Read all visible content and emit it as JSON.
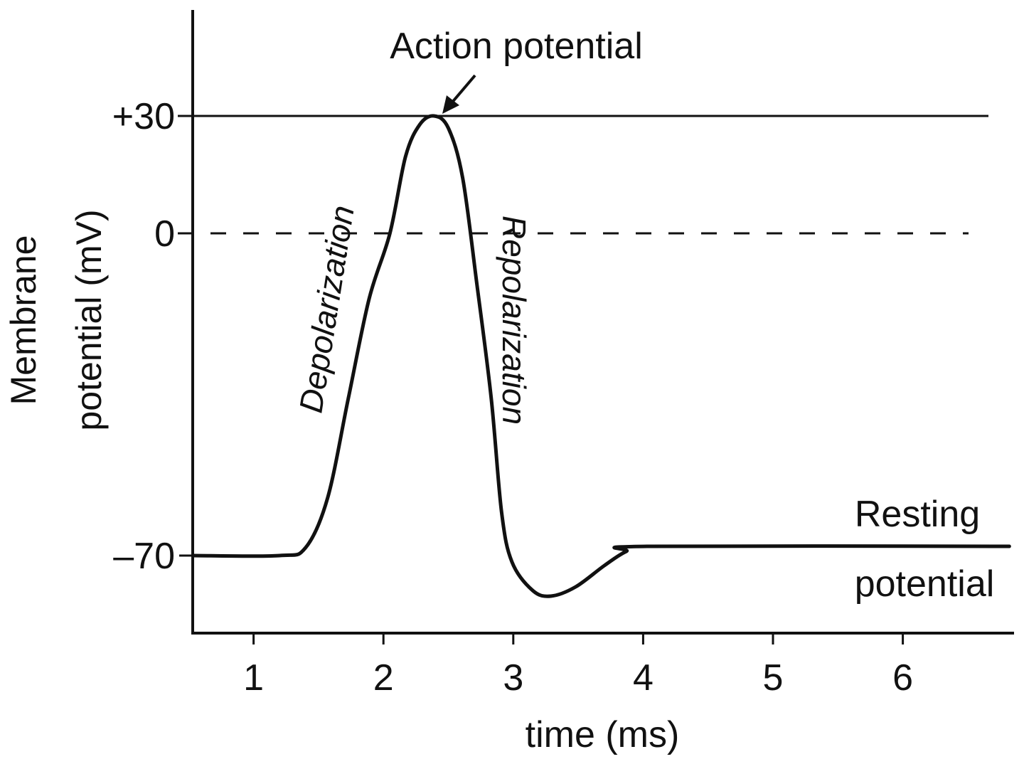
{
  "chart_data": {
    "type": "line",
    "title": "",
    "xlabel": "time (ms)",
    "ylabel": "Membrane potential (mV)",
    "ylabel_lines": [
      "Membrane",
      "potential (mV)"
    ],
    "x_ticks": [
      "1",
      "2",
      "3",
      "4",
      "5",
      "6"
    ],
    "y_ticks": [
      {
        "value": 30,
        "label": "+30"
      },
      {
        "value": 0,
        "label": "0"
      },
      {
        "value": -70,
        "label": "–70"
      }
    ],
    "xlim": [
      0.53,
      6.85
    ],
    "ylim": [
      -90,
      55
    ],
    "grid": false,
    "reference_lines": [
      {
        "value": 30,
        "style": "solid"
      },
      {
        "value": 0,
        "style": "dashed"
      }
    ],
    "series": [
      {
        "x": [
          0.53,
          1.2,
          1.4,
          1.57,
          1.73,
          1.89,
          2.05,
          2.17,
          2.28,
          2.39,
          2.5,
          2.61,
          2.72,
          2.83,
          2.91,
          2.99,
          3.15,
          3.29,
          3.48,
          3.7,
          3.87,
          4.03,
          6.82
        ],
        "y": [
          -70,
          -70,
          -68.3,
          -57.5,
          -35.8,
          -14.2,
          0,
          19.6,
          27.8,
          30,
          26.9,
          14.2,
          -11.1,
          -35.8,
          -60.6,
          -71.4,
          -77.6,
          -78.8,
          -76.8,
          -72.2,
          -69.1,
          -68,
          -68
        ],
        "color": "#111111"
      }
    ],
    "annotations": {
      "action_potential": "Action potential",
      "depolarization": "Depolarization",
      "repolarization": "Repolarization",
      "resting_line1": "Resting",
      "resting_line2": "potential"
    }
  }
}
